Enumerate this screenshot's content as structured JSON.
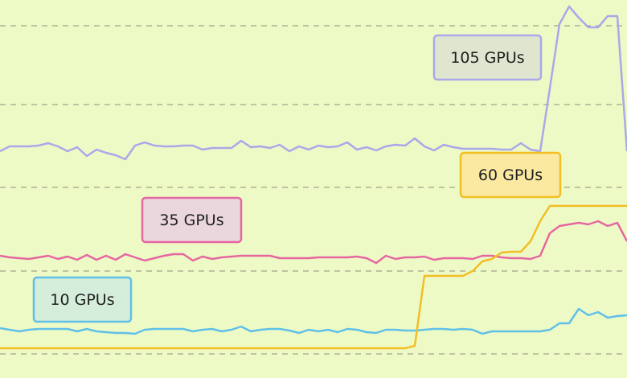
{
  "chart_data": {
    "type": "line",
    "xlim": [
      0,
      780
    ],
    "ylim": [
      0,
      470
    ],
    "yticks": [
      30,
      133,
      237,
      340,
      438
    ],
    "grid": true,
    "x": [
      0,
      12,
      24,
      36,
      48,
      60,
      72,
      84,
      96,
      108,
      120,
      132,
      144,
      156,
      168,
      180,
      192,
      204,
      216,
      228,
      240,
      252,
      264,
      276,
      288,
      300,
      312,
      324,
      336,
      348,
      360,
      372,
      384,
      396,
      408,
      420,
      432,
      444,
      456,
      468,
      480,
      492,
      504,
      516,
      528,
      540,
      552,
      564,
      576,
      588,
      600,
      612,
      624,
      636,
      648,
      660,
      672,
      684,
      696,
      708,
      720,
      732,
      744,
      756,
      768,
      780
    ],
    "series": [
      {
        "name": "10 GPUs",
        "color": "#5fc0e8",
        "values": [
          62,
          60,
          58,
          60,
          61,
          61,
          61,
          61,
          58,
          61,
          58,
          57,
          56,
          56,
          55,
          60,
          61,
          61,
          61,
          61,
          58,
          60,
          61,
          58,
          60,
          64,
          58,
          60,
          61,
          61,
          59,
          56,
          60,
          58,
          60,
          57,
          61,
          60,
          57,
          56,
          60,
          60,
          59,
          59,
          60,
          61,
          61,
          60,
          61,
          60,
          55,
          58,
          58,
          58,
          58,
          58,
          58,
          60,
          68,
          68,
          86,
          78,
          82,
          75,
          77,
          78
        ]
      },
      {
        "name": "35 GPUs",
        "color": "#e667a0",
        "values": [
          152,
          150,
          149,
          148,
          150,
          152,
          148,
          151,
          147,
          153,
          147,
          152,
          147,
          154,
          150,
          146,
          149,
          152,
          154,
          154,
          146,
          151,
          148,
          150,
          151,
          152,
          152,
          152,
          152,
          149,
          149,
          149,
          149,
          150,
          150,
          150,
          150,
          151,
          149,
          143,
          152,
          148,
          150,
          150,
          151,
          147,
          149,
          149,
          149,
          148,
          152,
          152,
          150,
          149,
          149,
          148,
          152,
          180,
          189,
          191,
          193,
          191,
          195,
          189,
          193,
          170
        ]
      },
      {
        "name": "60 GPUs",
        "color": "#f2be24",
        "values": [
          37,
          37,
          37,
          37,
          37,
          37,
          37,
          37,
          37,
          37,
          37,
          37,
          37,
          37,
          37,
          37,
          37,
          37,
          37,
          37,
          37,
          37,
          37,
          37,
          37,
          37,
          37,
          37,
          37,
          37,
          37,
          37,
          37,
          37,
          37,
          37,
          37,
          37,
          37,
          37,
          37,
          37,
          37,
          40,
          127,
          127,
          127,
          127,
          127,
          133,
          145,
          148,
          156,
          157,
          157,
          170,
          195,
          214,
          214,
          214,
          214,
          214,
          214,
          214,
          214,
          214
        ]
      },
      {
        "name": "105 GPUs",
        "color": "#aaa8e8",
        "values": [
          282,
          288,
          288,
          288,
          289,
          292,
          288,
          282,
          287,
          276,
          284,
          280,
          277,
          272,
          289,
          293,
          289,
          288,
          288,
          289,
          289,
          284,
          286,
          286,
          286,
          295,
          287,
          288,
          286,
          290,
          282,
          288,
          284,
          289,
          287,
          288,
          293,
          284,
          287,
          283,
          288,
          290,
          289,
          298,
          288,
          283,
          290,
          287,
          285,
          285,
          285,
          285,
          284,
          284,
          292,
          284,
          282,
          360,
          440,
          462,
          448,
          436,
          436,
          450,
          450,
          282
        ]
      }
    ]
  }
}
